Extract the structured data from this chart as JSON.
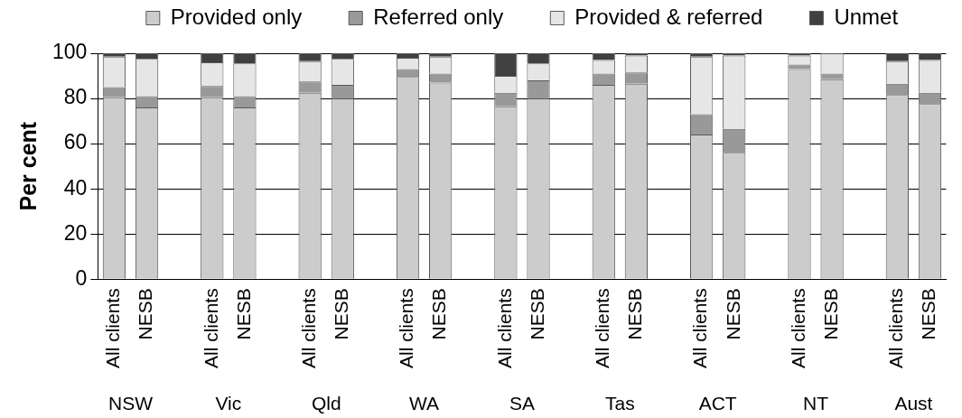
{
  "chart_data": {
    "type": "bar",
    "stacked": true,
    "ylabel": "Per cent",
    "categories": [
      "All clients",
      "NESB",
      null,
      "All clients",
      "NESB",
      null,
      "All clients",
      "NESB",
      null,
      "All clients",
      "NESB",
      null,
      "All clients",
      "NESB",
      null,
      "All clients",
      "NESB",
      null,
      "All clients",
      "NESB",
      null,
      "All clients",
      "NESB",
      null,
      "All clients",
      "NESB"
    ],
    "series": [
      {
        "name": "Provided only",
        "color": "#cccccc",
        "values": [
          80.5,
          76,
          null,
          80.5,
          76,
          null,
          82.5,
          80,
          null,
          89.5,
          87,
          null,
          76.5,
          80,
          null,
          86,
          86.5,
          null,
          64,
          56,
          null,
          93,
          88.5,
          null,
          81.5,
          77.5
        ]
      },
      {
        "name": "Referred only",
        "color": "#999999",
        "values": [
          4.5,
          5,
          null,
          5,
          5,
          null,
          5,
          6,
          null,
          3.5,
          4,
          null,
          6,
          8,
          null,
          5,
          5,
          null,
          9,
          10.5,
          null,
          2,
          2.5,
          null,
          5,
          5
        ]
      },
      {
        "name": "Provided & referred",
        "color": "#e6e6e6",
        "values": [
          13.5,
          16.5,
          null,
          10.5,
          14.5,
          null,
          9,
          11.5,
          null,
          5,
          7.5,
          null,
          7.5,
          7.5,
          null,
          6,
          7.5,
          null,
          25.5,
          32.5,
          null,
          4,
          9,
          null,
          10,
          14.5
        ]
      },
      {
        "name": "Unmet",
        "color": "#404040",
        "values": [
          1.5,
          2.5,
          null,
          4,
          4.5,
          null,
          3.5,
          2.5,
          null,
          2,
          1.5,
          null,
          10,
          4.5,
          null,
          3,
          1,
          null,
          1.5,
          1,
          null,
          1,
          0,
          null,
          3.5,
          3
        ]
      }
    ],
    "ylim": [
      0,
      100
    ],
    "yticks": [
      0,
      20,
      40,
      60,
      80,
      100
    ],
    "grid": "y",
    "legend": "top",
    "annotations": [
      "NSW",
      "Vic",
      "Qld",
      "WA",
      "SA",
      "Tas",
      "ACT",
      "NT",
      "Aust"
    ]
  }
}
